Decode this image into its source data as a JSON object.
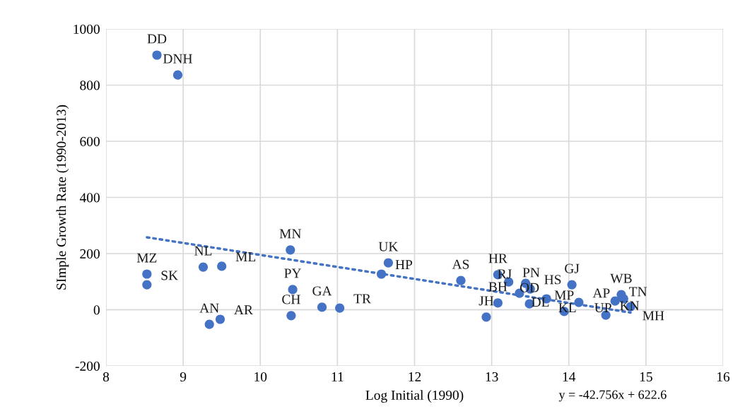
{
  "chart_data": {
    "type": "scatter",
    "xlabel": "Log Initial (1990)",
    "ylabel": "SImple Growth Rate (1990-2013)",
    "xlim": [
      8,
      16
    ],
    "ylim": [
      -200,
      1000
    ],
    "xticks": [
      8,
      9,
      10,
      11,
      12,
      13,
      14,
      15,
      16
    ],
    "yticks": [
      -200,
      0,
      200,
      400,
      600,
      800,
      1000
    ],
    "grid": true,
    "marker": "circle",
    "annotations": [
      "y = -42.756x + 622.6"
    ],
    "series": [
      {
        "color": "#4472c4",
        "x": [
          8.66,
          8.93,
          8.53,
          8.53,
          9.26,
          9.5,
          9.34,
          9.48,
          10.39,
          10.42,
          10.4,
          10.8,
          11.03,
          11.66,
          11.57,
          12.6,
          12.93,
          13.08,
          13.08,
          13.22,
          13.36,
          13.44,
          13.5,
          13.49,
          13.71,
          13.94,
          14.04,
          14.13,
          14.48,
          14.6,
          14.68,
          14.71,
          14.8
        ],
        "values": [
          907,
          836,
          127,
          89,
          152,
          155,
          -52,
          -34,
          213,
          72,
          -21,
          9,
          6,
          167,
          127,
          104,
          -26,
          24,
          125,
          99,
          59,
          94,
          74,
          21,
          39,
          -6,
          89,
          26,
          -19,
          31,
          54,
          39,
          11
        ],
        "value_labels": [
          "DD",
          "DNH",
          "MZ",
          "SK",
          "NL",
          "ML",
          "AN",
          "AR",
          "MN",
          "PY",
          "CH",
          "GA",
          "TR",
          "UK",
          "HP",
          "AS",
          "JH",
          "BH",
          "HR",
          "PN",
          "DL",
          "RJ",
          "HS",
          "OD",
          "KL",
          "MP",
          "GJ",
          "AP",
          "KN",
          "TN",
          "WB",
          "UP",
          "MH"
        ]
      },
      {
        "type": "line",
        "color": "#4472c4",
        "line_style": "dotted",
        "marker": "none",
        "x": [
          8.53,
          14.8
        ],
        "values": [
          258,
          -10
        ]
      }
    ]
  }
}
